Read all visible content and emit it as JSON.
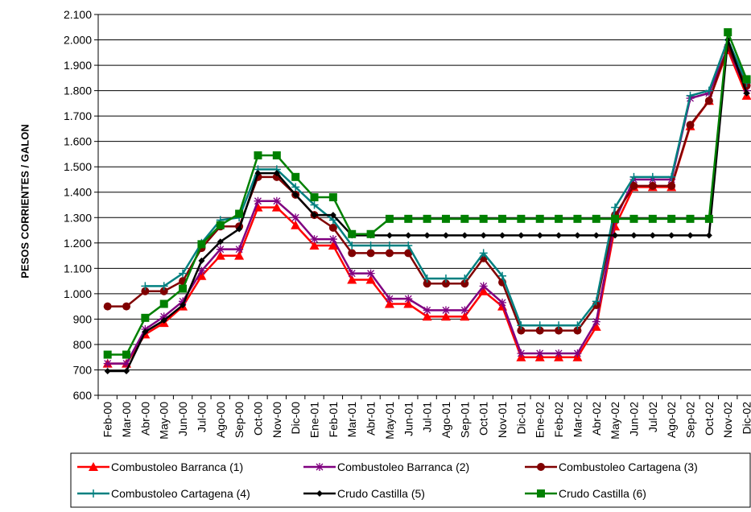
{
  "chart_data": {
    "type": "line",
    "y_label": "PESOS CORRIENTES / GALON",
    "categories": [
      "Feb-00",
      "Mar-00",
      "Abr-00",
      "May-00",
      "Jun-00",
      "Jul-00",
      "Ago-00",
      "Sep-00",
      "Oct-00",
      "Nov-00",
      "Dic-00",
      "Ene-01",
      "Feb-01",
      "Mar-01",
      "Abr-01",
      "May-01",
      "Jun-01",
      "Jul-01",
      "Ago-01",
      "Sep-01",
      "Oct-01",
      "Nov-01",
      "Dic-01",
      "Ene-02",
      "Feb-02",
      "Mar-02",
      "Abr-02",
      "May-02",
      "Jun-02",
      "Jul-02",
      "Ago-02",
      "Sep-02",
      "Oct-02",
      "Nov-02",
      "Dic-02"
    ],
    "ylim": [
      600,
      2100
    ],
    "yticks": [
      600,
      700,
      800,
      900,
      {
        "value": 1000,
        "label": "1.000"
      },
      {
        "value": 1100,
        "label": "1.100"
      },
      {
        "value": 1200,
        "label": "1.200"
      },
      {
        "value": 1300,
        "label": "1.300"
      },
      {
        "value": 1400,
        "label": "1.400"
      },
      {
        "value": 1500,
        "label": "1.500"
      },
      {
        "value": 1600,
        "label": "1.600"
      },
      {
        "value": 1700,
        "label": "1.700"
      },
      {
        "value": 1800,
        "label": "1.800"
      },
      {
        "value": 1900,
        "label": "1.900"
      },
      {
        "value": 2000,
        "label": "2.000"
      },
      {
        "value": 2100,
        "label": "2.100"
      }
    ],
    "grid": true,
    "series": [
      {
        "name": "Combustoleo Barranca (1)",
        "color": "#ff0000",
        "marker": "triangle",
        "values": [
          725,
          725,
          840,
          885,
          950,
          1070,
          1150,
          1150,
          1340,
          1340,
          1270,
          1190,
          1190,
          1055,
          1055,
          960,
          960,
          910,
          910,
          910,
          1010,
          950,
          750,
          750,
          750,
          750,
          870,
          1265,
          1420,
          1420,
          1420,
          1660,
          1760,
          1960,
          1780
        ]
      },
      {
        "name": "Combustoleo Barranca (2)",
        "color": "#800080",
        "marker": "star",
        "values": [
          725,
          725,
          860,
          910,
          970,
          1090,
          1175,
          1175,
          1365,
          1365,
          1300,
          1215,
          1215,
          1080,
          1080,
          980,
          980,
          935,
          935,
          935,
          1030,
          965,
          765,
          765,
          765,
          765,
          890,
          1290,
          1450,
          1450,
          1450,
          1770,
          1790,
          1970,
          1800
        ]
      },
      {
        "name": "Combustoleo Cartagena (3)",
        "color": "#800000",
        "marker": "circle",
        "values": [
          950,
          950,
          1010,
          1010,
          1050,
          1180,
          1265,
          1265,
          1460,
          1460,
          1390,
          1310,
          1260,
          1160,
          1160,
          1160,
          1160,
          1040,
          1040,
          1040,
          1140,
          1045,
          855,
          855,
          855,
          855,
          955,
          1310,
          1425,
          1425,
          1425,
          1665,
          1760,
          1970,
          1820
        ]
      },
      {
        "name": "Combustoleo Cartagena (4)",
        "color": "#008080",
        "marker": "plus",
        "values": [
          null,
          null,
          1030,
          1030,
          1080,
          1200,
          1290,
          1300,
          1490,
          1490,
          1420,
          1350,
          1290,
          1190,
          1190,
          1190,
          1190,
          1060,
          1060,
          1060,
          1160,
          1070,
          875,
          875,
          875,
          875,
          970,
          1340,
          1460,
          1460,
          1460,
          1780,
          1800,
          2000,
          1830
        ]
      },
      {
        "name": "Crudo Castilla (5)",
        "color": "#000000",
        "marker": "diamond",
        "values": [
          695,
          695,
          850,
          895,
          955,
          1130,
          1205,
          1255,
          1475,
          1475,
          1390,
          1310,
          1310,
          1230,
          1230,
          1230,
          1230,
          1230,
          1230,
          1230,
          1230,
          1230,
          1230,
          1230,
          1230,
          1230,
          1230,
          1230,
          1230,
          1230,
          1230,
          1230,
          1230,
          2000,
          1790
        ]
      },
      {
        "name": "Crudo Castilla (6)",
        "color": "#008000",
        "marker": "square",
        "values": [
          760,
          760,
          905,
          960,
          1020,
          1195,
          1270,
          1315,
          1545,
          1545,
          1460,
          1380,
          1380,
          1235,
          1235,
          1295,
          1295,
          1295,
          1295,
          1295,
          1295,
          1295,
          1295,
          1295,
          1295,
          1295,
          1295,
          1295,
          1295,
          1295,
          1295,
          1295,
          1295,
          2030,
          1845
        ]
      }
    ]
  }
}
